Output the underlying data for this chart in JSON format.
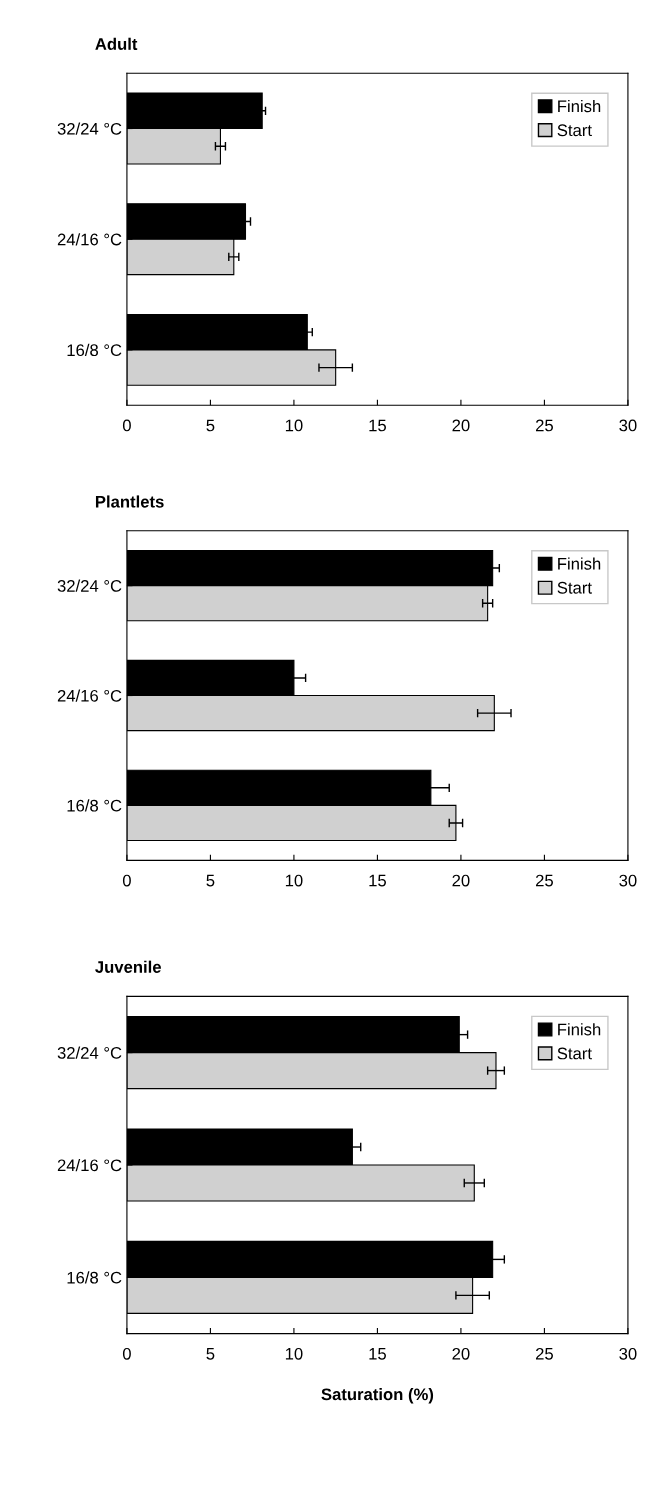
{
  "chart_data": [
    {
      "type": "bar",
      "orientation": "horizontal",
      "title": "Adult",
      "categories": [
        "32/24 °C",
        "24/16 °C",
        "16/8 °C"
      ],
      "series": [
        {
          "name": "Finish",
          "color": "#000000",
          "values": [
            8.1,
            7.1,
            10.8
          ],
          "errors": [
            0.2,
            0.3,
            0.3
          ]
        },
        {
          "name": "Start",
          "color": "#d0d0d0",
          "values": [
            5.6,
            6.4,
            12.5
          ],
          "errors": [
            0.3,
            0.3,
            1.0
          ]
        }
      ],
      "xlim": [
        0,
        30
      ],
      "xticks": [
        0,
        5,
        10,
        15,
        20,
        25,
        30
      ],
      "legend": "top right",
      "grid": false
    },
    {
      "type": "bar",
      "orientation": "horizontal",
      "title": "Plantlets",
      "categories": [
        "32/24 °C",
        "24/16 °C",
        "16/8 °C"
      ],
      "series": [
        {
          "name": "Finish",
          "color": "#000000",
          "values": [
            21.9,
            10.0,
            18.2
          ],
          "errors": [
            0.4,
            0.7,
            1.1
          ]
        },
        {
          "name": "Start",
          "color": "#d0d0d0",
          "values": [
            21.6,
            22.0,
            19.7
          ],
          "errors": [
            0.3,
            1.0,
            0.4
          ]
        }
      ],
      "xlim": [
        0,
        30
      ],
      "xticks": [
        0,
        5,
        10,
        15,
        20,
        25,
        30
      ],
      "legend": "top right",
      "grid": false
    },
    {
      "type": "bar",
      "orientation": "horizontal",
      "title": "Juvenile",
      "xlabel": "Saturation (%)",
      "categories": [
        "32/24 °C",
        "24/16 °C",
        "16/8 °C"
      ],
      "series": [
        {
          "name": "Finish",
          "color": "#000000",
          "values": [
            19.9,
            13.5,
            21.9
          ],
          "errors": [
            0.5,
            0.5,
            0.7
          ]
        },
        {
          "name": "Start",
          "color": "#d0d0d0",
          "values": [
            22.1,
            20.8,
            20.7
          ],
          "errors": [
            0.5,
            0.6,
            1.0
          ]
        }
      ],
      "xlim": [
        0,
        30
      ],
      "xticks": [
        0,
        5,
        10,
        15,
        20,
        25,
        30
      ],
      "legend": "top right",
      "grid": false
    }
  ]
}
